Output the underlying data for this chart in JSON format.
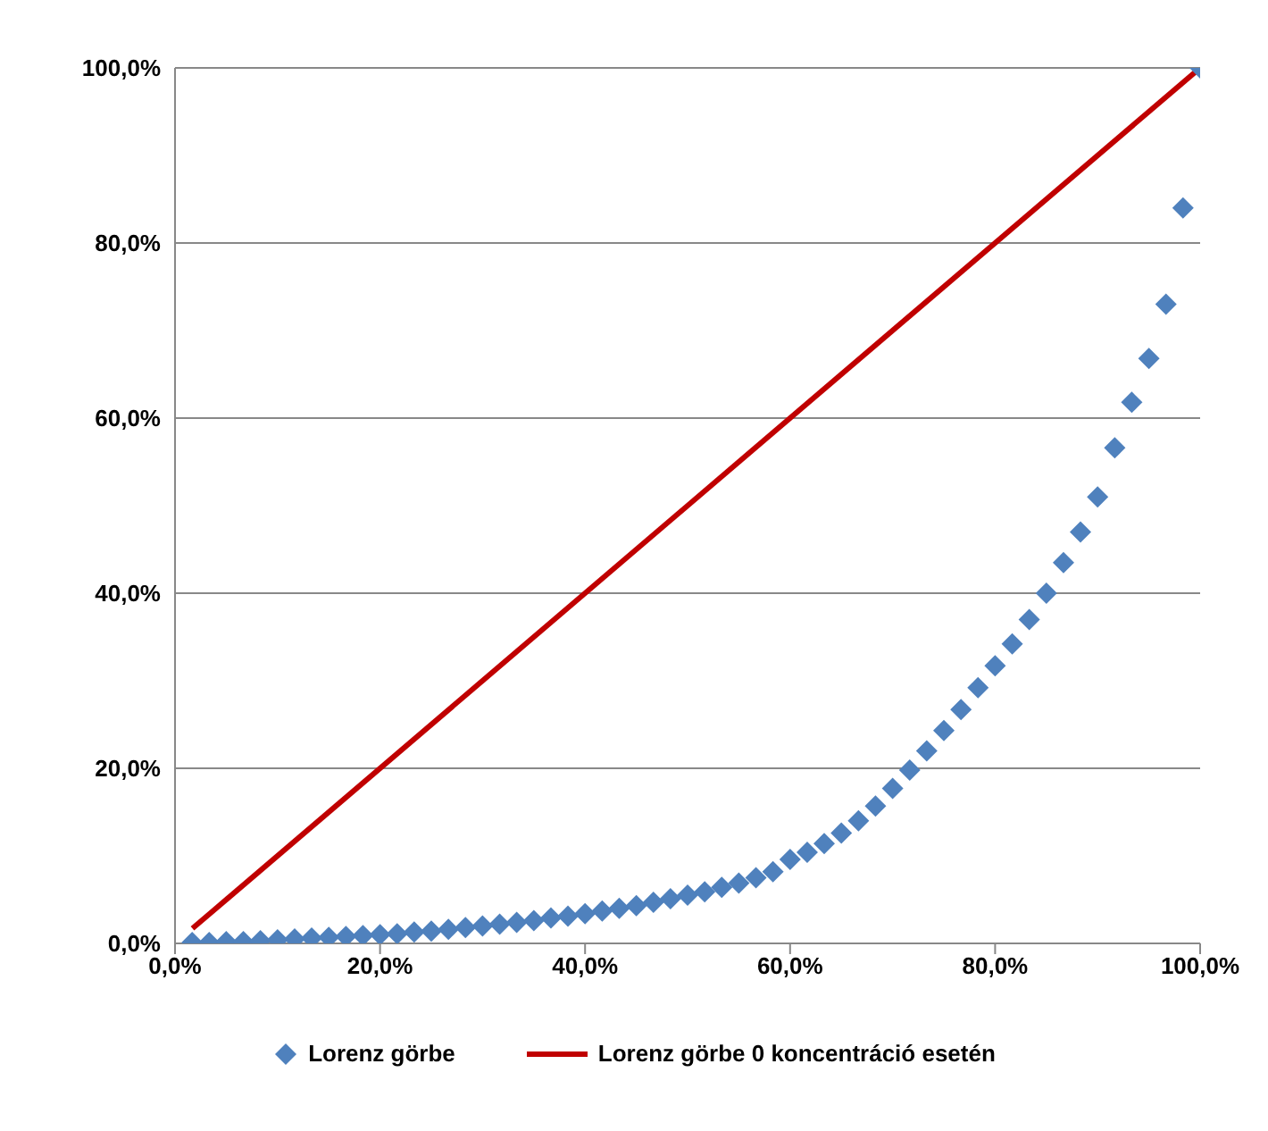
{
  "chart_data": {
    "type": "scatter",
    "xlim": [
      0,
      100
    ],
    "ylim": [
      0,
      100
    ],
    "xticks": [
      {
        "value": 0,
        "label": "0,0%"
      },
      {
        "value": 20,
        "label": "20,0%"
      },
      {
        "value": 40,
        "label": "40,0%"
      },
      {
        "value": 60,
        "label": "60,0%"
      },
      {
        "value": 80,
        "label": "80,0%"
      },
      {
        "value": 100,
        "label": "100,0%"
      }
    ],
    "yticks": [
      {
        "value": 0,
        "label": "0,0%"
      },
      {
        "value": 20,
        "label": "20,0%"
      },
      {
        "value": 40,
        "label": "40,0%"
      },
      {
        "value": 60,
        "label": "60,0%"
      },
      {
        "value": 80,
        "label": "80,0%"
      },
      {
        "value": 100,
        "label": "100,0%"
      }
    ],
    "grid": "y",
    "legend": "bottom",
    "series": [
      {
        "name": "Lorenz görbe",
        "marker": "diamond",
        "color": "#4f81bd",
        "x": [
          1.67,
          3.33,
          5,
          6.67,
          8.33,
          10,
          11.67,
          13.33,
          15,
          16.67,
          18.33,
          20,
          21.67,
          23.33,
          25,
          26.67,
          28.33,
          30,
          31.67,
          33.33,
          35,
          36.67,
          38.33,
          40,
          41.67,
          43.33,
          45,
          46.67,
          48.33,
          50,
          51.67,
          53.33,
          55,
          56.67,
          58.33,
          60,
          61.67,
          63.33,
          65,
          66.67,
          68.33,
          70,
          71.67,
          73.33,
          75,
          76.67,
          78.33,
          80,
          81.67,
          83.33,
          85,
          86.67,
          88.33,
          90,
          91.67,
          93.33,
          95,
          96.67,
          98.33,
          100
        ],
        "values": [
          0.1,
          0.1,
          0.2,
          0.2,
          0.3,
          0.4,
          0.5,
          0.6,
          0.7,
          0.8,
          0.9,
          1.0,
          1.1,
          1.3,
          1.4,
          1.6,
          1.8,
          2.0,
          2.2,
          2.4,
          2.6,
          2.9,
          3.1,
          3.4,
          3.7,
          4.0,
          4.3,
          4.7,
          5.1,
          5.5,
          5.9,
          6.4,
          6.9,
          7.5,
          8.2,
          9.6,
          10.4,
          11.4,
          12.6,
          14.0,
          15.7,
          17.7,
          19.8,
          22.0,
          24.3,
          26.7,
          29.2,
          31.7,
          34.2,
          37.0,
          40.0,
          43.5,
          47.0,
          51.0,
          56.6,
          61.8,
          66.8,
          73.0,
          84.0,
          100.0
        ]
      },
      {
        "name": "Lorenz görbe 0 koncentráció esetén",
        "type": "line",
        "marker": "none",
        "line_style": "solid",
        "color": "#c00000",
        "x": [
          1.7,
          100
        ],
        "values": [
          1.7,
          100
        ]
      }
    ]
  }
}
